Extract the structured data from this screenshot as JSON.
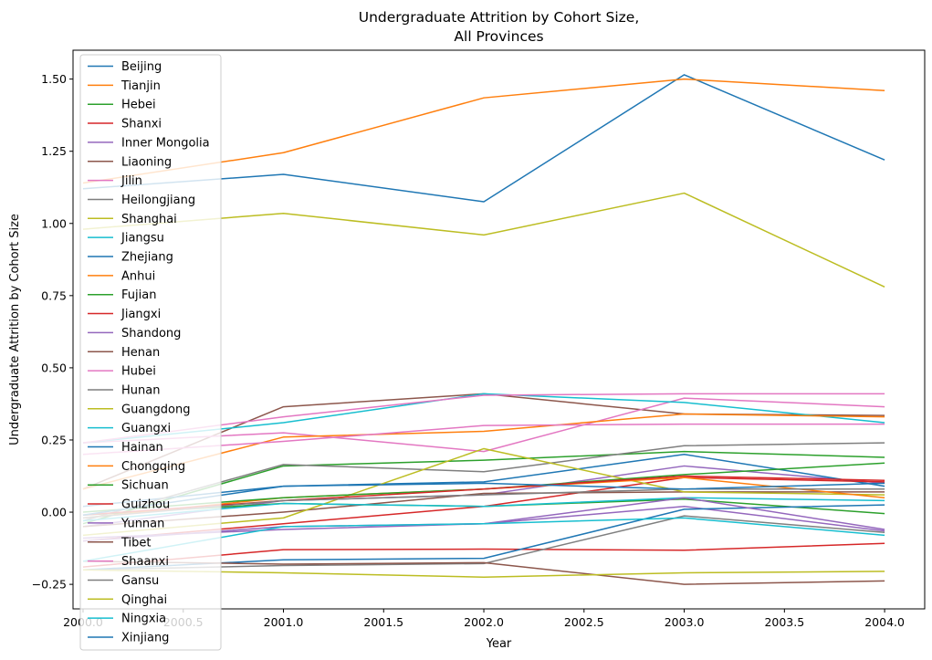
{
  "chart_data": {
    "type": "line",
    "title_line1": "Undergraduate Attrition by Cohort Size,",
    "title_line2": "All Provinces",
    "xlabel": "Year",
    "ylabel": "Undergraduate Attrition by Cohort Size",
    "xlim": [
      1999.95,
      2004.2
    ],
    "ylim": [
      -0.335,
      1.6
    ],
    "xticks": [
      2000.0,
      2000.5,
      2001.0,
      2001.5,
      2002.0,
      2002.5,
      2003.0,
      2003.5,
      2004.0
    ],
    "xtick_labels": [
      "2000.0",
      "2000.5",
      "2001.0",
      "2001.5",
      "2002.0",
      "2002.5",
      "2003.0",
      "2003.5",
      "2004.0"
    ],
    "yticks": [
      -0.25,
      0.0,
      0.25,
      0.5,
      0.75,
      1.0,
      1.25,
      1.5
    ],
    "ytick_labels": [
      "−0.25",
      "0.00",
      "0.25",
      "0.50",
      "0.75",
      "1.00",
      "1.25",
      "1.50"
    ],
    "legend_position": "upper-left",
    "x": [
      2000,
      2001,
      2002,
      2003,
      2004
    ],
    "series": [
      {
        "name": "Beijing",
        "color": "#1f77b4",
        "values": [
          1.12,
          1.17,
          1.075,
          1.515,
          1.22
        ]
      },
      {
        "name": "Tianjin",
        "color": "#ff7f0e",
        "values": [
          1.14,
          1.245,
          1.435,
          1.5,
          1.46
        ]
      },
      {
        "name": "Hebei",
        "color": "#2ca02c",
        "values": [
          -0.04,
          0.16,
          0.18,
          0.21,
          0.19
        ]
      },
      {
        "name": "Shanxi",
        "color": "#d62728",
        "values": [
          -0.19,
          -0.13,
          -0.128,
          -0.132,
          -0.108
        ]
      },
      {
        "name": "Inner Mongolia",
        "color": "#9467bd",
        "values": [
          -0.05,
          0.04,
          0.06,
          0.16,
          0.1
        ]
      },
      {
        "name": "Liaoning",
        "color": "#8c564b",
        "values": [
          0.08,
          0.365,
          0.41,
          0.34,
          0.335
        ]
      },
      {
        "name": "Jilin",
        "color": "#e377c2",
        "values": [
          0.24,
          0.275,
          0.21,
          0.395,
          0.365
        ]
      },
      {
        "name": "Heilongjiang",
        "color": "#7f7f7f",
        "values": [
          -0.2,
          -0.185,
          -0.178,
          -0.013,
          -0.07
        ]
      },
      {
        "name": "Shanghai",
        "color": "#bcbd22",
        "values": [
          0.98,
          1.035,
          0.96,
          1.105,
          0.78
        ]
      },
      {
        "name": "Jiangsu",
        "color": "#17becf",
        "values": [
          0.24,
          0.31,
          0.41,
          0.38,
          0.31
        ]
      },
      {
        "name": "Zhejiang",
        "color": "#1f77b4",
        "values": [
          0.02,
          0.09,
          0.105,
          0.2,
          0.09
        ]
      },
      {
        "name": "Anhui",
        "color": "#ff7f0e",
        "values": [
          0.08,
          0.26,
          0.28,
          0.34,
          0.33
        ]
      },
      {
        "name": "Fujian",
        "color": "#2ca02c",
        "values": [
          -0.01,
          0.03,
          0.02,
          0.045,
          -0.005
        ]
      },
      {
        "name": "Jiangxi",
        "color": "#d62728",
        "values": [
          -0.1,
          -0.04,
          0.02,
          0.12,
          0.105
        ]
      },
      {
        "name": "Shandong",
        "color": "#9467bd",
        "values": [
          -0.09,
          -0.06,
          -0.04,
          0.02,
          -0.065
        ]
      },
      {
        "name": "Henan",
        "color": "#8c564b",
        "values": [
          -0.05,
          0.0,
          0.065,
          0.07,
          0.07
        ]
      },
      {
        "name": "Hubei",
        "color": "#e377c2",
        "values": [
          0.2,
          0.245,
          0.3,
          0.305,
          0.305
        ]
      },
      {
        "name": "Hunan",
        "color": "#7f7f7f",
        "values": [
          -0.03,
          0.165,
          0.14,
          0.23,
          0.24
        ]
      },
      {
        "name": "Guangdong",
        "color": "#bcbd22",
        "values": [
          -0.08,
          -0.02,
          0.22,
          0.07,
          0.06
        ]
      },
      {
        "name": "Guangxi",
        "color": "#17becf",
        "values": [
          -0.03,
          0.03,
          0.02,
          0.05,
          0.04
        ]
      },
      {
        "name": "Hainan",
        "color": "#1f77b4",
        "values": [
          -0.2,
          -0.165,
          -0.16,
          0.01,
          0.025
        ]
      },
      {
        "name": "Chongqing",
        "color": "#ff7f0e",
        "values": [
          -0.02,
          0.05,
          0.08,
          0.12,
          0.05
        ]
      },
      {
        "name": "Sichuan",
        "color": "#2ca02c",
        "values": [
          0.0,
          0.05,
          0.08,
          0.13,
          0.17
        ]
      },
      {
        "name": "Guizhou",
        "color": "#d62728",
        "values": [
          -0.01,
          0.04,
          0.08,
          0.125,
          0.11
        ]
      },
      {
        "name": "Yunnan",
        "color": "#9467bd",
        "values": [
          -0.1,
          -0.05,
          -0.04,
          0.05,
          -0.06
        ]
      },
      {
        "name": "Tibet",
        "color": "#8c564b",
        "values": [
          -0.17,
          -0.18,
          -0.175,
          -0.25,
          -0.238
        ]
      },
      {
        "name": "Shaanxi",
        "color": "#e377c2",
        "values": [
          0.24,
          0.33,
          0.405,
          0.41,
          0.41
        ]
      },
      {
        "name": "Gansu",
        "color": "#7f7f7f",
        "values": [
          -0.02,
          0.04,
          0.06,
          0.08,
          0.08
        ]
      },
      {
        "name": "Qinghai",
        "color": "#bcbd22",
        "values": [
          -0.2,
          -0.21,
          -0.225,
          -0.21,
          -0.205
        ]
      },
      {
        "name": "Ningxia",
        "color": "#17becf",
        "values": [
          -0.17,
          -0.05,
          -0.04,
          -0.02,
          -0.08
        ]
      },
      {
        "name": "Xinjiang",
        "color": "#1f77b4",
        "values": [
          -0.01,
          0.09,
          0.1,
          0.08,
          0.1
        ]
      }
    ]
  }
}
